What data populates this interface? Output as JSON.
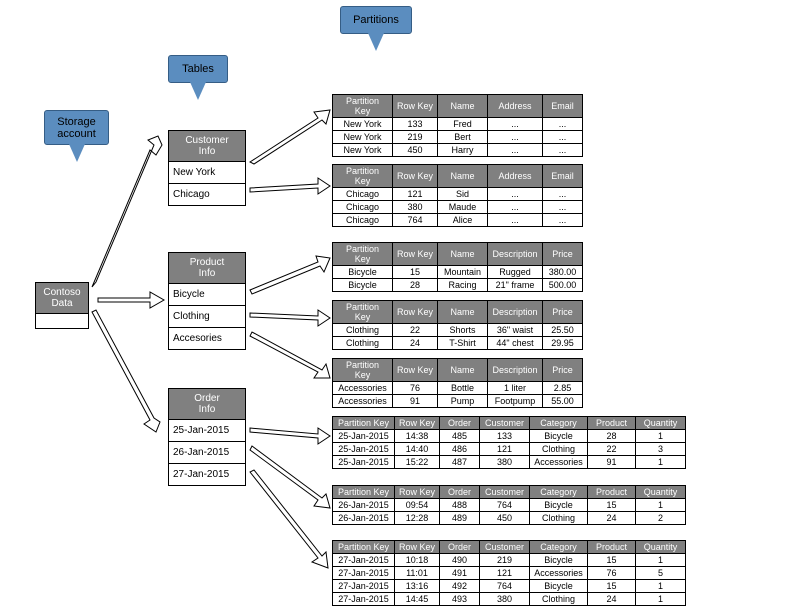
{
  "callouts": {
    "storage": "Storage\naccount",
    "tables": "Tables",
    "partitions": "Partitions"
  },
  "storageAccount": {
    "label": "Contoso\nData"
  },
  "tables": [
    {
      "header": "Customer\nInfo",
      "rows": [
        "New York",
        "Chicago"
      ]
    },
    {
      "header": "Product\nInfo",
      "rows": [
        "Bicycle",
        "Clothing",
        "Accesories"
      ]
    },
    {
      "header": "Order\nInfo",
      "rows": [
        "25-Jan-2015",
        "26-Jan-2015",
        "27-Jan-2015"
      ]
    }
  ],
  "partTablesA": [
    {
      "cols": [
        "Partition Key",
        "Row Key",
        "Name",
        "Address",
        "Email"
      ],
      "rows": [
        [
          "New York",
          "133",
          "Fred",
          "...",
          "..."
        ],
        [
          "New York",
          "219",
          "Bert",
          "...",
          "..."
        ],
        [
          "New York",
          "450",
          "Harry",
          "...",
          "..."
        ]
      ]
    },
    {
      "cols": [
        "Partition Key",
        "Row Key",
        "Name",
        "Address",
        "Email"
      ],
      "rows": [
        [
          "Chicago",
          "121",
          "Sid",
          "...",
          "..."
        ],
        [
          "Chicago",
          "380",
          "Maude",
          "...",
          "..."
        ],
        [
          "Chicago",
          "764",
          "Alice",
          "...",
          "..."
        ]
      ]
    },
    {
      "cols": [
        "Partition Key",
        "Row Key",
        "Name",
        "Description",
        "Price"
      ],
      "rows": [
        [
          "Bicycle",
          "15",
          "Mountain",
          "Rugged",
          "380.00"
        ],
        [
          "Bicycle",
          "28",
          "Racing",
          "21\" frame",
          "500.00"
        ]
      ]
    },
    {
      "cols": [
        "Partition Key",
        "Row Key",
        "Name",
        "Description",
        "Price"
      ],
      "rows": [
        [
          "Clothing",
          "22",
          "Shorts",
          "36\" waist",
          "25.50"
        ],
        [
          "Clothing",
          "24",
          "T-Shirt",
          "44\" chest",
          "29.95"
        ]
      ]
    },
    {
      "cols": [
        "Partition Key",
        "Row Key",
        "Name",
        "Description",
        "Price"
      ],
      "rows": [
        [
          "Accessories",
          "76",
          "Bottle",
          "1 liter",
          "2.85"
        ],
        [
          "Accessories",
          "91",
          "Pump",
          "Footpump",
          "55.00"
        ]
      ]
    }
  ],
  "partTablesB": [
    {
      "cols": [
        "Partition Key",
        "Row Key",
        "Order",
        "Customer",
        "Category",
        "Product",
        "Quantity"
      ],
      "rows": [
        [
          "25-Jan-2015",
          "14:38",
          "485",
          "133",
          "Bicycle",
          "28",
          "1"
        ],
        [
          "25-Jan-2015",
          "14:40",
          "486",
          "121",
          "Clothing",
          "22",
          "3"
        ],
        [
          "25-Jan-2015",
          "15:22",
          "487",
          "380",
          "Accessories",
          "91",
          "1"
        ]
      ]
    },
    {
      "cols": [
        "Partition Key",
        "Row Key",
        "Order",
        "Customer",
        "Category",
        "Product",
        "Quantity"
      ],
      "rows": [
        [
          "26-Jan-2015",
          "09:54",
          "488",
          "764",
          "Bicycle",
          "15",
          "1"
        ],
        [
          "26-Jan-2015",
          "12:28",
          "489",
          "450",
          "Clothing",
          "24",
          "2"
        ]
      ]
    },
    {
      "cols": [
        "Partition Key",
        "Row Key",
        "Order",
        "Customer",
        "Category",
        "Product",
        "Quantity"
      ],
      "rows": [
        [
          "27-Jan-2015",
          "10:18",
          "490",
          "219",
          "Bicycle",
          "15",
          "1"
        ],
        [
          "27-Jan-2015",
          "11:01",
          "491",
          "121",
          "Accessories",
          "76",
          "5"
        ],
        [
          "27-Jan-2015",
          "13:16",
          "492",
          "764",
          "Bicycle",
          "15",
          "1"
        ],
        [
          "27-Jan-2015",
          "14:45",
          "493",
          "380",
          "Clothing",
          "24",
          "1"
        ]
      ]
    }
  ],
  "colors": {
    "callout": "#5b8dbf",
    "header": "#808080",
    "arrowFill": "#ffffff",
    "arrowStroke": "#000000"
  },
  "colWidthsA": [
    60,
    45,
    50,
    55,
    40
  ],
  "colWidthsB": [
    62,
    45,
    40,
    50,
    58,
    48,
    50
  ]
}
